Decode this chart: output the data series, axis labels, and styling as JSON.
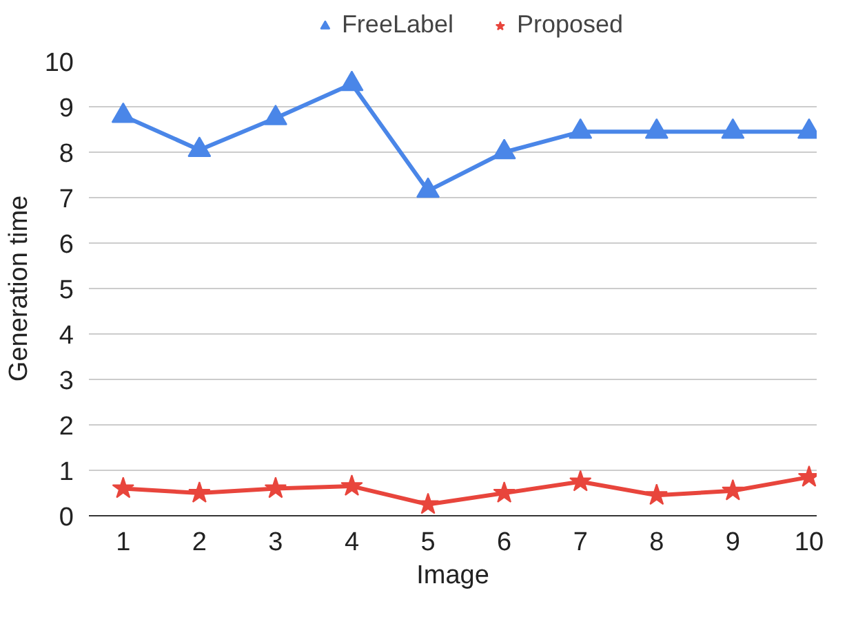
{
  "chart_data": {
    "type": "line",
    "xlabel": "Image",
    "ylabel": "Generation time",
    "categories": [
      "1",
      "2",
      "3",
      "4",
      "5",
      "6",
      "7",
      "8",
      "9",
      "10"
    ],
    "series": [
      {
        "name": "FreeLabel",
        "color": "#4a86e8",
        "marker": "triangle",
        "values": [
          8.8,
          8.05,
          8.75,
          9.5,
          7.15,
          8.0,
          8.45,
          8.45,
          8.45,
          8.45
        ]
      },
      {
        "name": "Proposed",
        "color": "#e8453c",
        "marker": "star",
        "values": [
          0.6,
          0.5,
          0.6,
          0.65,
          0.25,
          0.5,
          0.75,
          0.45,
          0.55,
          0.85
        ]
      }
    ],
    "ylim": [
      0,
      10
    ],
    "yticks": [
      0,
      1,
      2,
      3,
      4,
      5,
      6,
      7,
      8,
      9,
      10
    ],
    "grid": "y",
    "legend": "top"
  }
}
